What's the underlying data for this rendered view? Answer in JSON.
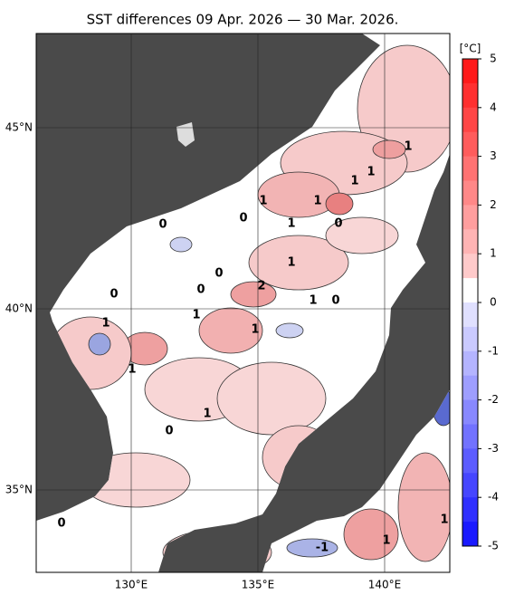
{
  "title": "SST differences 09 Apr. 2026 — 30 Mar. 2026.",
  "map": {
    "lat_labels": [
      {
        "value": 45,
        "label": "45°N"
      },
      {
        "value": 40,
        "label": "40°N"
      },
      {
        "value": 35,
        "label": "35°N"
      }
    ],
    "lon_labels": [
      {
        "value": 130,
        "label": "130°E"
      },
      {
        "value": 135,
        "label": "135°E"
      },
      {
        "value": 140,
        "label": "140°E"
      }
    ]
  },
  "colorbar": {
    "unit": "[°C]",
    "range": [
      -5,
      5
    ],
    "ticks": [
      5,
      4,
      3,
      2,
      1,
      0,
      -1,
      -2,
      -3,
      -4,
      -5
    ]
  },
  "contour_labels": [
    1,
    1,
    1,
    1,
    1,
    0,
    1,
    0,
    0,
    1,
    0,
    0,
    2,
    0,
    1,
    0,
    1,
    1,
    1,
    1,
    1,
    0,
    0,
    -1,
    1,
    1
  ]
}
